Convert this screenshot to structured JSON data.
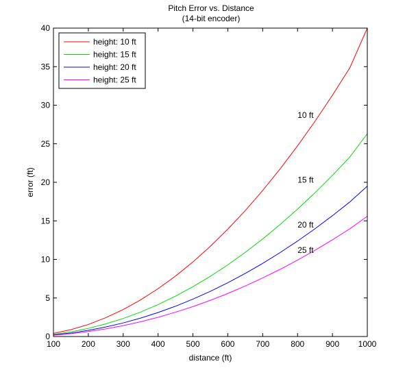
{
  "chart_data": {
    "type": "line",
    "title": "Pitch Error vs. Distance",
    "subtitle": "(14-bit encoder)",
    "xlabel": "distance (ft)",
    "ylabel": "error (ft)",
    "xlim": [
      100,
      1000
    ],
    "ylim": [
      0,
      40
    ],
    "xticks": [
      100,
      200,
      300,
      400,
      500,
      600,
      700,
      800,
      900,
      1000
    ],
    "yticks": [
      0,
      5,
      10,
      15,
      20,
      25,
      30,
      35,
      40
    ],
    "grid": false,
    "legend_position": "top-left",
    "x": [
      100,
      150,
      200,
      250,
      300,
      350,
      400,
      450,
      500,
      550,
      600,
      650,
      700,
      750,
      800,
      850,
      900,
      950,
      1000
    ],
    "series": [
      {
        "name": "height: 10 ft",
        "color": "#ff0000",
        "values": [
          0.4,
          0.89,
          1.56,
          2.44,
          3.49,
          4.75,
          6.2,
          7.84,
          9.67,
          11.7,
          13.92,
          16.33,
          18.94,
          21.74,
          24.73,
          27.91,
          31.29,
          34.86,
          40.0
        ]
      },
      {
        "name": "height: 15 ft",
        "color": "#00dd00",
        "values": [
          0.27,
          0.6,
          1.05,
          1.63,
          2.34,
          3.17,
          4.14,
          5.23,
          6.46,
          7.81,
          9.29,
          10.91,
          12.65,
          14.52,
          16.52,
          18.64,
          20.9,
          23.28,
          26.3
        ]
      },
      {
        "name": "height: 20 ft",
        "color": "#0000ff",
        "values": [
          0.21,
          0.45,
          0.8,
          1.23,
          1.76,
          2.39,
          3.11,
          3.93,
          4.85,
          5.86,
          6.97,
          8.18,
          9.48,
          10.89,
          12.38,
          13.98,
          15.67,
          17.46,
          19.5
        ]
      },
      {
        "name": "height: 25 ft",
        "color": "#ff00ff",
        "values": [
          0.17,
          0.37,
          0.64,
          0.99,
          1.41,
          1.91,
          2.49,
          3.15,
          3.88,
          4.69,
          5.58,
          6.55,
          7.59,
          8.71,
          9.91,
          11.18,
          12.54,
          13.97,
          15.6
        ]
      }
    ],
    "annotations": [
      {
        "text": "10 ft",
        "x": 800,
        "y": 28.7
      },
      {
        "text": "15 ft",
        "x": 800,
        "y": 20.3
      },
      {
        "text": "20 ft",
        "x": 800,
        "y": 14.5
      },
      {
        "text": "25 ft",
        "x": 800,
        "y": 11.2
      }
    ]
  }
}
